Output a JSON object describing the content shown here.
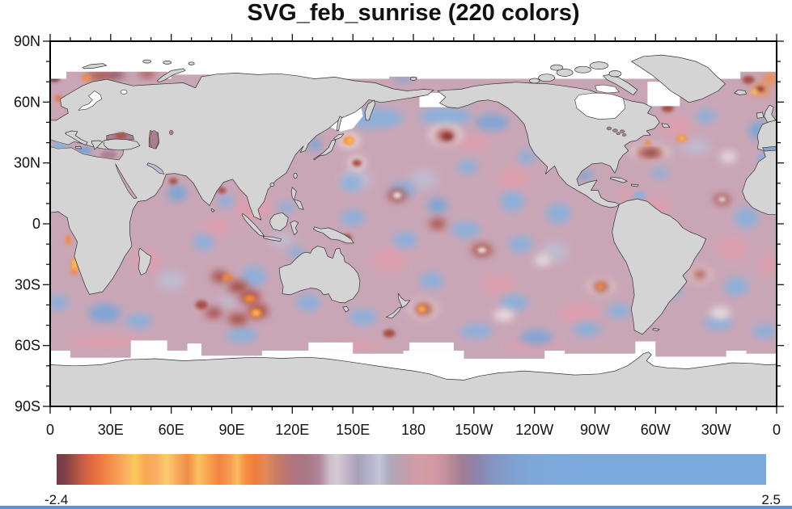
{
  "title": "SVG_feb_sunrise (220 colors)",
  "axes": {
    "lat_labels": [
      "90N",
      "60N",
      "30N",
      "0",
      "30S",
      "60S",
      "90S"
    ],
    "lon_labels": [
      "0",
      "30E",
      "60E",
      "90E",
      "120E",
      "150E",
      "180",
      "150W",
      "120W",
      "90W",
      "60W",
      "30W",
      "0"
    ]
  },
  "colorbar": {
    "min_label": "-2.4",
    "max_label": "2.5",
    "stops": [
      [
        0.0,
        "#773b4d"
      ],
      [
        0.01,
        "#7c3e48"
      ],
      [
        0.022,
        "#9c4c42"
      ],
      [
        0.035,
        "#c25b44"
      ],
      [
        0.05,
        "#e06a40"
      ],
      [
        0.065,
        "#ef7d42"
      ],
      [
        0.08,
        "#f59652"
      ],
      [
        0.095,
        "#f9ab5b"
      ],
      [
        0.11,
        "#fbc95f"
      ],
      [
        0.125,
        "#f9a855"
      ],
      [
        0.14,
        "#f9ad62"
      ],
      [
        0.155,
        "#fccd6d"
      ],
      [
        0.17,
        "#f9a85c"
      ],
      [
        0.185,
        "#f08e49"
      ],
      [
        0.2,
        "#fbc05f"
      ],
      [
        0.215,
        "#f9a04f"
      ],
      [
        0.23,
        "#ef8440"
      ],
      [
        0.245,
        "#f79d55"
      ],
      [
        0.255,
        "#fbb95f"
      ],
      [
        0.265,
        "#f78f44"
      ],
      [
        0.28,
        "#ee7e3c"
      ],
      [
        0.295,
        "#e08a5a"
      ],
      [
        0.31,
        "#c87c62"
      ],
      [
        0.33,
        "#b4747b"
      ],
      [
        0.35,
        "#a87685"
      ],
      [
        0.37,
        "#b2859a"
      ],
      [
        0.385,
        "#cdbfc9"
      ],
      [
        0.395,
        "#d6ccd6"
      ],
      [
        0.41,
        "#c0b4c6"
      ],
      [
        0.425,
        "#a8a0b8"
      ],
      [
        0.44,
        "#b4b2ca"
      ],
      [
        0.455,
        "#c2c6d8"
      ],
      [
        0.47,
        "#b0a8bc"
      ],
      [
        0.49,
        "#bfa0ac"
      ],
      [
        0.51,
        "#d29ca6"
      ],
      [
        0.53,
        "#d69aa4"
      ],
      [
        0.55,
        "#c08f9e"
      ],
      [
        0.57,
        "#a37e94"
      ],
      [
        0.59,
        "#8f82a8"
      ],
      [
        0.615,
        "#8495c0"
      ],
      [
        0.64,
        "#80a0cf"
      ],
      [
        0.67,
        "#7ea7d8"
      ],
      [
        0.75,
        "#7ca9dc"
      ],
      [
        1.0,
        "#7aaadd"
      ]
    ]
  },
  "colors": {
    "land": "#d4d4d4",
    "coast": "#333333",
    "frame": "#000000",
    "text": "#111111",
    "base": "#c9a6b6",
    "strip": "#5e92d2",
    "palette": {
      "pink": "#dc9fae",
      "lav": "#c1b9cd",
      "pale": "#ecdfe2",
      "blue": "#8db0da",
      "blue2": "#7fa5d3",
      "red": "#a84e45",
      "red2": "#8d3c3b",
      "maroon": "#7a3b49",
      "orange": "#f28a3d",
      "orange2": "#e26f3a",
      "yellow": "#fdc75e",
      "mauve": "#a77e93"
    }
  },
  "chart_data": {
    "type": "heatmap",
    "subtype": "filled-contour world map (plate carree, lon 0-360E)",
    "title": "SVG_feb_sunrise (220 colors)",
    "value_range": [
      -2.4,
      2.5
    ],
    "n_colors": 220,
    "x_axis": {
      "ticks": [
        "0",
        "30E",
        "60E",
        "90E",
        "120E",
        "150E",
        "180",
        "150W",
        "120W",
        "90W",
        "60W",
        "30W",
        "0"
      ],
      "minor_every_deg": 10
    },
    "y_axis": {
      "ticks": [
        "90N",
        "60N",
        "30N",
        "0",
        "30S",
        "60S",
        "90S"
      ],
      "minor_every_deg": 10
    },
    "legend": {
      "type": "horizontal colorbar",
      "min": "-2.4",
      "max": "2.5"
    },
    "no_data_regions": [
      "Arctic Ocean",
      "Sea of Okhotsk",
      "Bering Sea north",
      "Hudson Bay",
      "Baltic Sea",
      "Labrador Sea",
      "Antarctic sea-ice zone"
    ],
    "features_format": "[lon_deg_east, lat_deg, rx_deg, ry_deg, palette_key] approximate anomaly blobs over ocean",
    "features": [
      [
        100,
        8,
        9,
        6,
        "pink"
      ],
      [
        82,
        -2,
        7,
        5,
        "pink"
      ],
      [
        130,
        -22,
        9,
        6,
        "pink"
      ],
      [
        168,
        -18,
        9,
        6,
        "pink"
      ],
      [
        152,
        22,
        8,
        5,
        "lav"
      ],
      [
        185,
        22,
        7,
        5,
        "lav"
      ],
      [
        230,
        22,
        8,
        6,
        "pink"
      ],
      [
        250,
        -14,
        7,
        5,
        "lav"
      ],
      [
        222,
        -30,
        8,
        5,
        "pink"
      ],
      [
        262,
        -44,
        10,
        5,
        "pink"
      ],
      [
        338,
        -12,
        7,
        6,
        "pink"
      ],
      [
        310,
        48,
        8,
        5,
        "pink"
      ],
      [
        48,
        -18,
        7,
        5,
        "pink"
      ],
      [
        20,
        -8,
        6,
        5,
        "pink"
      ],
      [
        352,
        20,
        6,
        5,
        "lav"
      ],
      [
        300,
        8,
        7,
        5,
        "pink"
      ],
      [
        60,
        -28,
        7,
        5,
        "lav"
      ],
      [
        115,
        -8,
        6,
        4,
        "lav"
      ],
      [
        210,
        40,
        8,
        4,
        "pink"
      ],
      [
        320,
        38,
        7,
        4,
        "lav"
      ],
      [
        356,
        -20,
        5,
        5,
        "pink"
      ],
      [
        140,
        58,
        8,
        3,
        "pink"
      ],
      [
        28,
        -58,
        20,
        3,
        "pink"
      ],
      [
        285,
        15,
        4,
        2.5,
        "pink"
      ],
      [
        336,
        33,
        4,
        2.5,
        "pale"
      ],
      [
        88,
        -38,
        4,
        3,
        "lav"
      ],
      [
        240,
        -60,
        14,
        2.5,
        "pink"
      ],
      [
        150,
        -60,
        14,
        2.5,
        "pink"
      ],
      [
        160,
        52,
        15,
        5,
        "blue"
      ],
      [
        196,
        53,
        13,
        4.5,
        "blue"
      ],
      [
        219,
        50,
        8,
        4,
        "blue2"
      ],
      [
        131,
        39,
        3.5,
        3,
        "blue2"
      ],
      [
        149,
        20,
        5,
        4,
        "blue"
      ],
      [
        175,
        17,
        6,
        4,
        "blue"
      ],
      [
        150,
        3,
        6,
        4,
        "blue"
      ],
      [
        176,
        -8,
        6,
        4,
        "blue"
      ],
      [
        192,
        9,
        5,
        4,
        "blue2"
      ],
      [
        206,
        -3,
        7,
        4,
        "blue"
      ],
      [
        229,
        11,
        6,
        5,
        "blue"
      ],
      [
        252,
        5,
        6,
        5,
        "blue"
      ],
      [
        233,
        -10,
        6,
        4,
        "blue"
      ],
      [
        207,
        28,
        5,
        3.5,
        "blue"
      ],
      [
        236,
        33,
        4,
        3.5,
        "blue"
      ],
      [
        265,
        24,
        4,
        2.5,
        "blue2"
      ],
      [
        189,
        -28,
        6,
        4,
        "blue"
      ],
      [
        230,
        -39,
        7,
        4,
        "blue"
      ],
      [
        211,
        -53,
        8,
        3.5,
        "blue"
      ],
      [
        241,
        -56,
        8,
        3.5,
        "blue2"
      ],
      [
        266,
        -52,
        7,
        3.5,
        "blue"
      ],
      [
        282,
        -43,
        6,
        3.5,
        "blue"
      ],
      [
        155,
        -46,
        7,
        4,
        "blue"
      ],
      [
        128,
        -39,
        6,
        4,
        "blue"
      ],
      [
        101,
        -26,
        6,
        5,
        "blue"
      ],
      [
        95,
        -55,
        8,
        3.5,
        "blue"
      ],
      [
        27,
        -44,
        8,
        4.5,
        "blue2"
      ],
      [
        44,
        -48,
        7,
        3.5,
        "blue"
      ],
      [
        4,
        -39,
        5,
        4,
        "blue"
      ],
      [
        340,
        -31,
        6,
        4.5,
        "blue"
      ],
      [
        331,
        -49,
        7,
        3.5,
        "blue"
      ],
      [
        354,
        -53,
        6,
        3.5,
        "blue"
      ],
      [
        308,
        -33,
        5,
        3.5,
        "blue"
      ],
      [
        345,
        3,
        6,
        5,
        "blue"
      ],
      [
        302,
        25,
        4,
        3,
        "blue"
      ],
      [
        352,
        46,
        6,
        4.5,
        "blue2"
      ],
      [
        325,
        53,
        5,
        3.5,
        "blue"
      ],
      [
        63,
        15,
        5,
        4,
        "blue2"
      ],
      [
        87,
        11,
        4,
        3,
        "blue"
      ],
      [
        76,
        -9,
        5,
        4,
        "blue"
      ],
      [
        117,
        8,
        4,
        3,
        "blue"
      ],
      [
        122,
        -14,
        4,
        3,
        "blue"
      ],
      [
        353,
        32,
        2.5,
        3,
        "blue"
      ],
      [
        292,
        14,
        3,
        2,
        "blue"
      ],
      [
        175,
        71.5,
        5,
        1.5,
        "blue2"
      ],
      [
        205,
        62,
        4,
        2,
        "blue2"
      ],
      [
        196,
        44,
        8,
        5,
        "pale"
      ],
      [
        196,
        43.5,
        5,
        3.2,
        "red"
      ],
      [
        197,
        43,
        2.5,
        1.8,
        "red2"
      ],
      [
        148,
        41,
        5,
        3.5,
        "pale"
      ],
      [
        148,
        41,
        3,
        2.2,
        "orange"
      ],
      [
        148.5,
        41,
        1.6,
        1.1,
        "yellow"
      ],
      [
        152,
        30,
        4,
        3,
        "pale"
      ],
      [
        152,
        30,
        2.4,
        1.8,
        "red"
      ],
      [
        172,
        14,
        4.5,
        3,
        "red"
      ],
      [
        172,
        14,
        2.2,
        1.5,
        "pale"
      ],
      [
        192,
        0,
        4,
        2.5,
        "red"
      ],
      [
        214,
        -13,
        5,
        3,
        "red"
      ],
      [
        214,
        -13,
        2.3,
        1.4,
        "pale"
      ],
      [
        244,
        -18,
        4,
        2.5,
        "pale"
      ],
      [
        297,
        35.5,
        10,
        3.3,
        "pale"
      ],
      [
        297,
        35,
        7,
        2.4,
        "red"
      ],
      [
        298,
        35,
        3.5,
        1.4,
        "red2"
      ],
      [
        313,
        42,
        2.6,
        1.8,
        "orange"
      ],
      [
        313,
        42,
        1.2,
        0.9,
        "yellow"
      ],
      [
        296,
        40,
        1.6,
        1.2,
        "orange"
      ],
      [
        352,
        66,
        4.5,
        2.6,
        "orange"
      ],
      [
        352,
        66.5,
        2,
        1.3,
        "red2"
      ],
      [
        349,
        65,
        1.6,
        1,
        "yellow"
      ],
      [
        357,
        71.5,
        4,
        2.5,
        "orange"
      ],
      [
        346,
        71,
        3,
        2,
        "red"
      ],
      [
        308,
        72,
        3,
        1.5,
        "orange"
      ],
      [
        7,
        60,
        2.4,
        1.8,
        "orange"
      ],
      [
        4,
        62,
        1.6,
        1.4,
        "orange2"
      ],
      [
        25,
        73,
        7,
        2.2,
        "red"
      ],
      [
        33,
        73.5,
        4,
        1.5,
        "maroon"
      ],
      [
        18,
        72,
        2.5,
        1.5,
        "orange"
      ],
      [
        48,
        74,
        4,
        1.8,
        "red"
      ],
      [
        2,
        72,
        3,
        2,
        "maroon"
      ],
      [
        12,
        -21,
        1.8,
        4.5,
        "orange"
      ],
      [
        12,
        -20,
        1,
        2.8,
        "yellow"
      ],
      [
        9,
        -8,
        1.4,
        2.5,
        "orange"
      ],
      [
        61,
        21,
        2.2,
        1.6,
        "red"
      ],
      [
        85,
        16.5,
        2.2,
        1.5,
        "red"
      ],
      [
        84,
        -26,
        4,
        2.8,
        "red"
      ],
      [
        88,
        -26.5,
        2.5,
        1.8,
        "orange"
      ],
      [
        93,
        -31,
        5,
        3,
        "red"
      ],
      [
        99,
        -36,
        5,
        3.5,
        "red"
      ],
      [
        99,
        -37,
        2.8,
        2,
        "orange"
      ],
      [
        103,
        -43,
        5,
        3.5,
        "red"
      ],
      [
        102,
        -44,
        3,
        2.2,
        "orange"
      ],
      [
        102,
        -44,
        1.5,
        1.1,
        "yellow"
      ],
      [
        93,
        -47,
        5,
        2.8,
        "red"
      ],
      [
        81,
        -44,
        4,
        2.6,
        "red"
      ],
      [
        75,
        -40,
        3,
        2.2,
        "red"
      ],
      [
        185,
        -42,
        7,
        4.5,
        "pale"
      ],
      [
        185,
        -42,
        4.8,
        3.2,
        "red"
      ],
      [
        184.5,
        -42,
        2.4,
        1.8,
        "orange"
      ],
      [
        184,
        -42,
        1.1,
        0.9,
        "yellow"
      ],
      [
        168,
        -54,
        3,
        2,
        "red"
      ],
      [
        273,
        -31,
        6.5,
        3.8,
        "pale"
      ],
      [
        273,
        -31,
        4.2,
        2.8,
        "red"
      ],
      [
        272.5,
        -31,
        2,
        1.4,
        "orange"
      ],
      [
        322,
        -25,
        5.5,
        3.6,
        "pale"
      ],
      [
        322,
        -25,
        3.6,
        2.4,
        "red"
      ],
      [
        333,
        12,
        4,
        2.4,
        "red"
      ],
      [
        333,
        12,
        1.8,
        1.2,
        "pale"
      ],
      [
        306,
        57,
        3,
        2,
        "red"
      ],
      [
        147,
        -7,
        2.5,
        2,
        "red"
      ],
      [
        225,
        -45,
        5,
        2.8,
        "pale"
      ],
      [
        332,
        -44,
        5,
        2.8,
        "pale"
      ]
    ]
  }
}
